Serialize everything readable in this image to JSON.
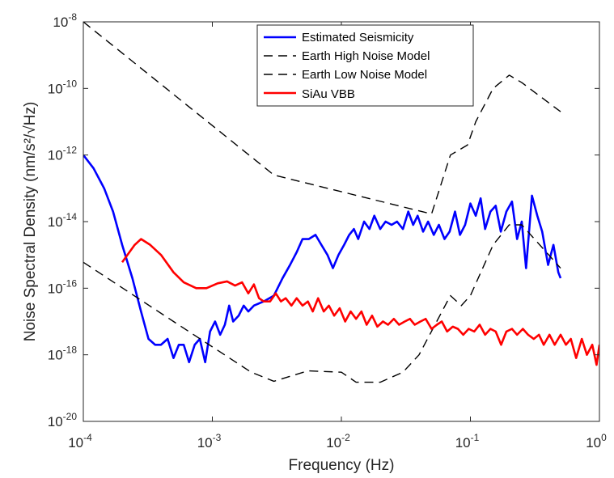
{
  "chart_data": {
    "type": "line",
    "xlabel": "Frequency (Hz)",
    "ylabel": "Noise Spectral Density (nm/s²/√Hz)",
    "x_scale": "log",
    "y_scale": "log",
    "xlim": [
      0.0001,
      1
    ],
    "ylim": [
      1e-20,
      1e-08
    ],
    "x_ticks": [
      {
        "value": 0.0001,
        "base": "10",
        "exp": "-4"
      },
      {
        "value": 0.001,
        "base": "10",
        "exp": "-3"
      },
      {
        "value": 0.01,
        "base": "10",
        "exp": "-2"
      },
      {
        "value": 0.1,
        "base": "10",
        "exp": "-1"
      },
      {
        "value": 1,
        "base": "10",
        "exp": "0"
      }
    ],
    "y_ticks": [
      {
        "value": 1e-20,
        "base": "10",
        "exp": "-20"
      },
      {
        "value": 1e-18,
        "base": "10",
        "exp": "-18"
      },
      {
        "value": 1e-16,
        "base": "10",
        "exp": "-16"
      },
      {
        "value": 1e-14,
        "base": "10",
        "exp": "-14"
      },
      {
        "value": 1e-12,
        "base": "10",
        "exp": "-12"
      },
      {
        "value": 1e-10,
        "base": "10",
        "exp": "-10"
      },
      {
        "value": 1e-08,
        "base": "10",
        "exp": "-8"
      }
    ],
    "grid": false,
    "legend_position": "top-center",
    "series": [
      {
        "name": "Estimated Seismicity",
        "color": "#0000ff",
        "style": "solid",
        "x": [
          0.0001,
          0.00012,
          0.000145,
          0.00017,
          0.0002,
          0.00024,
          0.00028,
          0.00032,
          0.00036,
          0.0004,
          0.00045,
          0.0005,
          0.00055,
          0.0006,
          0.00066,
          0.00073,
          0.0008,
          0.00088,
          0.00096,
          0.00105,
          0.00115,
          0.00125,
          0.00135,
          0.00145,
          0.0016,
          0.00175,
          0.0019,
          0.0021,
          0.0025,
          0.003,
          0.0035,
          0.004,
          0.0045,
          0.005,
          0.0056,
          0.0063,
          0.007,
          0.0078,
          0.0086,
          0.0095,
          0.0105,
          0.0115,
          0.0125,
          0.0135,
          0.015,
          0.0165,
          0.018,
          0.02,
          0.022,
          0.0245,
          0.027,
          0.03,
          0.033,
          0.036,
          0.039,
          0.043,
          0.047,
          0.052,
          0.057,
          0.063,
          0.069,
          0.076,
          0.083,
          0.091,
          0.1,
          0.11,
          0.12,
          0.13,
          0.143,
          0.157,
          0.172,
          0.19,
          0.21,
          0.23,
          0.25,
          0.27,
          0.3,
          0.33,
          0.36,
          0.4,
          0.44,
          0.48,
          0.5
        ],
        "y": [
          1e-12,
          4e-13,
          1e-13,
          2e-14,
          2e-15,
          2e-16,
          2e-17,
          3e-18,
          2e-18,
          2e-18,
          3e-18,
          8e-19,
          2e-18,
          2e-18,
          6e-19,
          2e-18,
          3e-18,
          6e-19,
          5e-18,
          1e-17,
          4e-18,
          8e-18,
          3e-17,
          1e-17,
          1.5e-17,
          3e-17,
          2e-17,
          3e-17,
          4e-17,
          6e-17,
          2e-16,
          5e-16,
          1.2e-15,
          3e-15,
          3e-15,
          4e-15,
          2e-15,
          1e-15,
          4e-16,
          1e-15,
          2e-15,
          4e-15,
          6e-15,
          3e-15,
          1e-14,
          6e-15,
          1.5e-14,
          6e-15,
          1e-14,
          8e-15,
          1e-14,
          6e-15,
          2e-14,
          8e-15,
          1.5e-14,
          5e-15,
          1e-14,
          4e-15,
          8e-15,
          3e-15,
          5e-15,
          2e-14,
          4e-15,
          8e-15,
          3.5e-14,
          1.5e-14,
          5e-14,
          6e-15,
          2e-14,
          3e-14,
          5e-15,
          2e-14,
          4e-14,
          3e-15,
          1e-14,
          4e-16,
          6e-14,
          1.5e-14,
          5e-15,
          5e-16,
          2e-15,
          3e-16,
          2e-16
        ]
      },
      {
        "name": "Earth High Noise Model",
        "color": "#000000",
        "style": "dashed",
        "x": [
          0.0001,
          0.003,
          0.05,
          0.07,
          0.095,
          0.11,
          0.15,
          0.2,
          0.25,
          0.5
        ],
        "y": [
          1e-08,
          2.5e-13,
          1.7e-14,
          1e-12,
          2e-12,
          1e-11,
          1e-10,
          2.5e-10,
          1.5e-10,
          2e-11
        ]
      },
      {
        "name": "Earth Low Noise Model",
        "color": "#000000",
        "style": "dashed",
        "x": [
          0.0001,
          0.0005,
          0.002,
          0.003,
          0.0055,
          0.01,
          0.013,
          0.02,
          0.03,
          0.04,
          0.07,
          0.085,
          0.1,
          0.15,
          0.2,
          0.25,
          0.5
        ],
        "y": [
          6e-16,
          1e-17,
          3e-19,
          1.6e-19,
          3.3e-19,
          3e-19,
          1.5e-19,
          1.5e-19,
          3e-19,
          1e-18,
          6e-17,
          3e-17,
          6e-17,
          2e-15,
          8e-15,
          8e-15,
          4e-16
        ]
      },
      {
        "name": "SiAu VBB",
        "color": "#ff0000",
        "style": "solid",
        "x": [
          0.0002,
          0.00025,
          0.00028,
          0.00033,
          0.0004,
          0.0005,
          0.0006,
          0.00075,
          0.0009,
          0.0011,
          0.0013,
          0.0015,
          0.0017,
          0.0019,
          0.0021,
          0.0023,
          0.0025,
          0.0028,
          0.0031,
          0.0034,
          0.0037,
          0.0041,
          0.0045,
          0.005,
          0.0055,
          0.006,
          0.0066,
          0.0073,
          0.008,
          0.0088,
          0.0097,
          0.0107,
          0.0118,
          0.013,
          0.0143,
          0.0157,
          0.0173,
          0.019,
          0.021,
          0.023,
          0.0255,
          0.028,
          0.031,
          0.034,
          0.037,
          0.041,
          0.045,
          0.05,
          0.055,
          0.06,
          0.066,
          0.073,
          0.08,
          0.088,
          0.097,
          0.107,
          0.118,
          0.13,
          0.143,
          0.157,
          0.173,
          0.19,
          0.21,
          0.23,
          0.255,
          0.28,
          0.31,
          0.34,
          0.37,
          0.41,
          0.45,
          0.5,
          0.55,
          0.6,
          0.66,
          0.73,
          0.8,
          0.88,
          0.95,
          1
        ],
        "y": [
          6e-16,
          2e-15,
          3e-15,
          2e-15,
          1e-15,
          3e-16,
          1.5e-16,
          1e-16,
          1e-16,
          1.4e-16,
          1.6e-16,
          1.2e-16,
          1.5e-16,
          7e-17,
          1.3e-16,
          5e-17,
          4e-17,
          4e-17,
          7e-17,
          4e-17,
          5e-17,
          3e-17,
          5e-17,
          3e-17,
          4e-17,
          2e-17,
          5e-17,
          2e-17,
          3e-17,
          1.5e-17,
          2.5e-17,
          1e-17,
          2e-17,
          1.2e-17,
          2e-17,
          8e-18,
          1.5e-17,
          7e-18,
          1e-17,
          8e-18,
          1.2e-17,
          8e-18,
          1e-17,
          1.2e-17,
          8e-18,
          1e-17,
          1.2e-17,
          6e-18,
          8e-18,
          1e-17,
          5e-18,
          7e-18,
          6e-18,
          4e-18,
          6e-18,
          5e-18,
          8e-18,
          4e-18,
          6e-18,
          5e-18,
          2e-18,
          5e-18,
          6e-18,
          4e-18,
          6e-18,
          4e-18,
          3e-18,
          4e-18,
          2e-18,
          4e-18,
          2e-18,
          4e-18,
          2e-18,
          3e-18,
          8e-19,
          3e-18,
          1e-18,
          2e-18,
          5e-19,
          2e-18
        ]
      }
    ]
  }
}
